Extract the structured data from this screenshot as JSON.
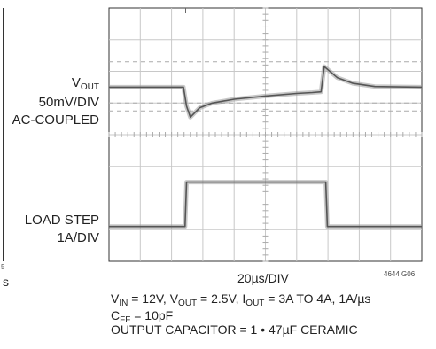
{
  "labels": {
    "vout": {
      "main": "V",
      "sub": "OUT"
    },
    "vout_scale": "50mV/DIV",
    "vout_coupling": "AC-COUPLED",
    "load_step": "LOAD STEP",
    "load_scale": "1A/DIV",
    "time_scale": "20µs/DIV",
    "figure_id": "4644 G06",
    "left_partial_suffix": "5",
    "left_partial_text": "s"
  },
  "caption": {
    "line1": [
      {
        "t": "V"
      },
      {
        "s": "IN"
      },
      {
        "t": " = 12V, V"
      },
      {
        "s": "OUT"
      },
      {
        "t": " = 2.5V, I"
      },
      {
        "s": "OUT"
      },
      {
        "t": " = 3A TO 4A, 1A/µs"
      }
    ],
    "line2": [
      {
        "t": "C"
      },
      {
        "s": "FF"
      },
      {
        "t": " = 10pF"
      }
    ],
    "line3": [
      {
        "t": "OUTPUT CAPACITOR = 1 • 47µF CERAMIC"
      }
    ]
  },
  "chart_data": {
    "type": "line",
    "grid": {
      "x_divisions": 10,
      "y_divisions": 8,
      "grid_on": true
    },
    "x": {
      "label": "20µs/DIV",
      "range_div": [
        0,
        10
      ]
    },
    "series": [
      {
        "name": "",
        "units": "divisions",
        "points": [
          [
            0.0,
            5.5
          ],
          [
            2.38,
            5.5
          ],
          [
            2.48,
            4.9
          ],
          [
            2.6,
            4.55
          ],
          [
            2.9,
            4.85
          ],
          [
            3.3,
            5.0
          ],
          [
            4.0,
            5.12
          ],
          [
            5.0,
            5.22
          ],
          [
            6.0,
            5.3
          ],
          [
            6.5,
            5.33
          ],
          [
            6.78,
            5.35
          ],
          [
            6.88,
            6.15
          ],
          [
            7.0,
            6.05
          ],
          [
            7.3,
            5.8
          ],
          [
            7.8,
            5.62
          ],
          [
            8.5,
            5.52
          ],
          [
            10.0,
            5.5
          ]
        ]
      },
      {
        "name": "",
        "units": "divisions",
        "points": [
          [
            0.0,
            1.1
          ],
          [
            2.43,
            1.1
          ],
          [
            2.48,
            2.5
          ],
          [
            6.93,
            2.5
          ],
          [
            6.98,
            1.1
          ],
          [
            10.0,
            1.1
          ]
        ]
      }
    ],
    "reference_lines_div": [
      6.3,
      5.0,
      4.75
    ],
    "trigger_tick_div": 2.45
  }
}
